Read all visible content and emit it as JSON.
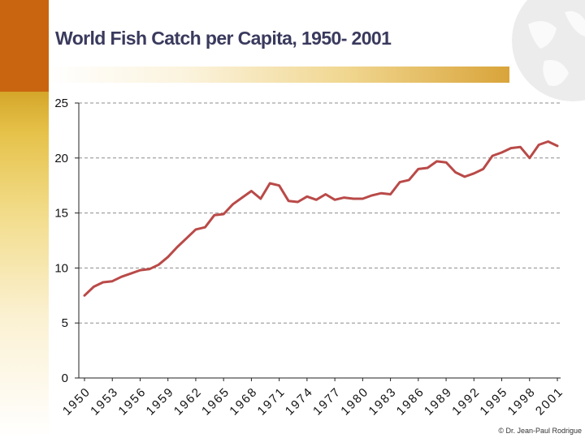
{
  "title": "World Fish Catch per Capita, 1950- 2001",
  "copyright": "© Dr. Jean-Paul Rodrigue",
  "colors": {
    "line": "#b94a48",
    "accent_top": "#c96410",
    "accent_gold": "#d9a43a",
    "title_text": "#3a3a5e",
    "grid": "#8c8c8c"
  },
  "chart_data": {
    "type": "line",
    "title": "World Fish Catch per Capita, 1950- 2001",
    "xlabel": "",
    "ylabel": "",
    "ylim": [
      0,
      25
    ],
    "yticks": [
      "0",
      "5",
      "10",
      "15",
      "20",
      "25"
    ],
    "xticks": [
      "1950",
      "1953",
      "1956",
      "1959",
      "1962",
      "1965",
      "1968",
      "1971",
      "1974",
      "1977",
      "1980",
      "1983",
      "1986",
      "1989",
      "1992",
      "1995",
      "1998",
      "2001"
    ],
    "grid": true,
    "series": [
      {
        "name": "Fish catch per capita",
        "x": [
          1950,
          1951,
          1952,
          1953,
          1954,
          1955,
          1956,
          1957,
          1958,
          1959,
          1960,
          1961,
          1962,
          1963,
          1964,
          1965,
          1966,
          1967,
          1968,
          1969,
          1970,
          1971,
          1972,
          1973,
          1974,
          1975,
          1976,
          1977,
          1978,
          1979,
          1980,
          1981,
          1982,
          1983,
          1984,
          1985,
          1986,
          1987,
          1988,
          1989,
          1990,
          1991,
          1992,
          1993,
          1994,
          1995,
          1996,
          1997,
          1998,
          1999,
          2000,
          2001
        ],
        "values": [
          7.5,
          8.3,
          8.7,
          8.8,
          9.2,
          9.5,
          9.8,
          9.9,
          10.3,
          11.0,
          11.9,
          12.7,
          13.5,
          13.7,
          14.8,
          14.9,
          15.8,
          16.4,
          17.0,
          16.3,
          17.7,
          17.5,
          16.1,
          16.0,
          16.5,
          16.2,
          16.7,
          16.2,
          16.4,
          16.3,
          16.3,
          16.6,
          16.8,
          16.7,
          17.8,
          18.0,
          19.0,
          19.1,
          19.7,
          19.6,
          18.7,
          18.3,
          18.6,
          19.0,
          20.2,
          20.5,
          20.9,
          21.0,
          20.0,
          21.2,
          21.5,
          21.1
        ]
      }
    ]
  }
}
